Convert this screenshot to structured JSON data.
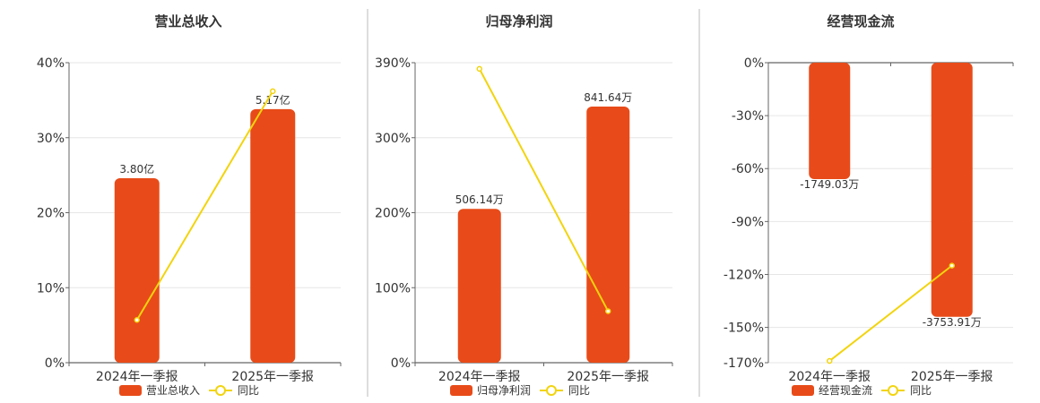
{
  "colors": {
    "bar": "#e84b19",
    "line": "#f2d40e",
    "axis": "#666666",
    "grid": "#e6e6e6",
    "divider": "#bbbbbb",
    "text": "#333333"
  },
  "chart_data": [
    {
      "type": "bar",
      "title": "营业总收入",
      "categories": [
        "2024年一季报",
        "2025年一季报"
      ],
      "series": [
        {
          "name": "营业总收入",
          "type": "bar",
          "values": [
            24.6,
            33.8
          ],
          "labels": [
            "3.80亿",
            "5.17亿"
          ]
        },
        {
          "name": "同比",
          "type": "line",
          "values": [
            5.7,
            36.2
          ]
        }
      ],
      "y_ticks": [
        "40%",
        "30%",
        "20%",
        "10%",
        "0%"
      ],
      "ylim": [
        0,
        40
      ],
      "grid": true,
      "legend": "bottom"
    },
    {
      "type": "bar",
      "title": "归母净利润",
      "categories": [
        "2024年一季报",
        "2025年一季报"
      ],
      "series": [
        {
          "name": "归母净利润",
          "type": "bar",
          "values": [
            200,
            333
          ],
          "labels": [
            "506.14万",
            "841.64万"
          ]
        },
        {
          "name": "同比",
          "type": "line",
          "values": [
            382,
            67
          ]
        }
      ],
      "y_ticks": [
        "390%",
        "300%",
        "200%",
        "100%",
        "0%"
      ],
      "ylim": [
        0,
        390
      ],
      "grid": true,
      "legend": "bottom"
    },
    {
      "type": "bar",
      "title": "经营现金流",
      "categories": [
        "2024年一季报",
        "2025年一季报"
      ],
      "series": [
        {
          "name": "经营现金流",
          "type": "bar",
          "values": [
            -66,
            -144
          ],
          "labels": [
            "-1749.03万",
            "-3753.91万"
          ]
        },
        {
          "name": "同比",
          "type": "line",
          "values": [
            -169,
            -115
          ]
        }
      ],
      "y_ticks": [
        "0%",
        "-30%",
        "-60%",
        "-90%",
        "-120%",
        "-150%",
        "-170%"
      ],
      "y_tick_values": [
        0,
        -30,
        -60,
        -90,
        -120,
        -150,
        -170
      ],
      "ylim": [
        -170,
        0
      ],
      "grid": true,
      "legend": "bottom"
    }
  ]
}
